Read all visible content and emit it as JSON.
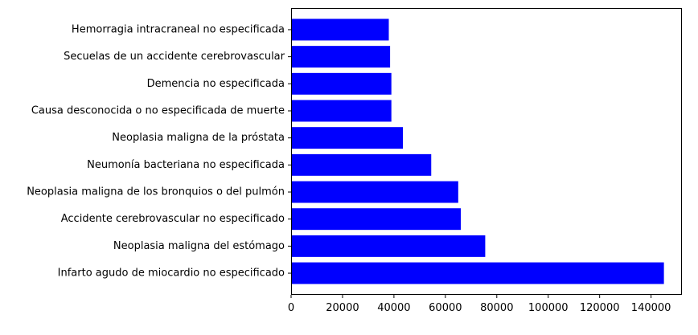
{
  "chart_data": {
    "type": "bar",
    "orientation": "horizontal",
    "title": "",
    "xlabel": "",
    "ylabel": "",
    "bar_color": "#0000ff",
    "xlim": [
      0,
      152000
    ],
    "xticks": [
      0,
      20000,
      40000,
      60000,
      80000,
      100000,
      120000,
      140000
    ],
    "xtick_labels": [
      "0",
      "20000",
      "40000",
      "60000",
      "80000",
      "100000",
      "120000",
      "140000"
    ],
    "grid": false,
    "categories": [
      "Infarto agudo de miocardio no especificado",
      "Neoplasia maligna del estómago",
      "Accidente cerebrovascular no especificado",
      "Neoplasia maligna de los bronquios o del pulmón",
      "Neumonía bacteriana no especificada",
      "Neoplasia maligna de la próstata",
      "Causa desconocida o no especificada de muerte",
      "Demencia no especificada",
      "Secuelas de un accidente cerebrovascular",
      "Hemorragia intracraneal no especificada"
    ],
    "values": [
      145000,
      75500,
      66000,
      65000,
      54500,
      43500,
      39000,
      39000,
      38500,
      38000
    ]
  }
}
